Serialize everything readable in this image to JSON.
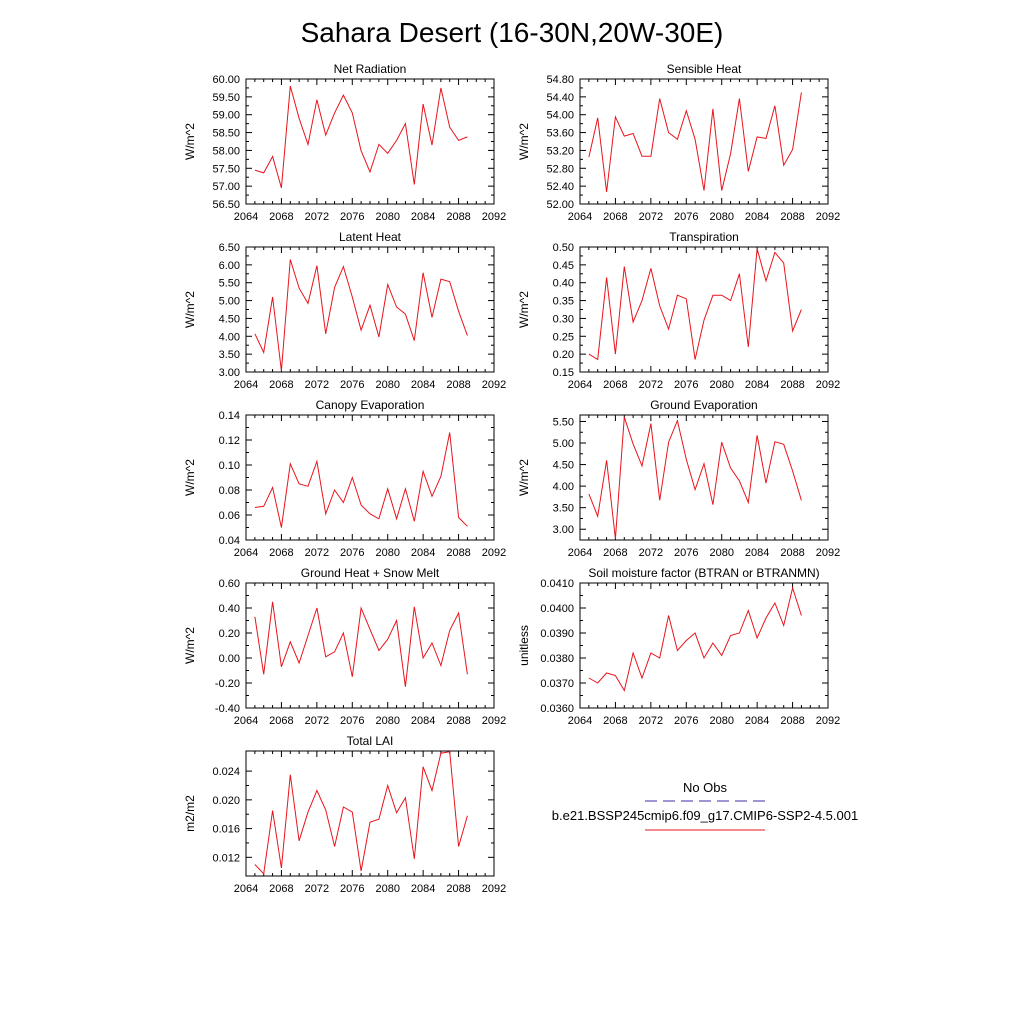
{
  "figure_title": "Sahara Desert (16-30N,20W-30E)",
  "line_color": "#e8141c",
  "obs_color": "#3a2fa0",
  "legend": {
    "obs_label": "No Obs",
    "model_label": "b.e21.BSSP245cmip6.f09_g17.CMIP6-SSP2-4.5.001"
  },
  "chart_data": [
    {
      "type": "line",
      "title": "Net Radiation",
      "ylabel": "W/m^2",
      "xlim": [
        2064,
        2092
      ],
      "ylim": [
        56.5,
        60.0
      ],
      "xticks": [
        "2064",
        "2068",
        "2072",
        "2076",
        "2080",
        "2084",
        "2088",
        "2092"
      ],
      "yticks": [
        "56.50",
        "57.00",
        "57.50",
        "58.00",
        "58.50",
        "59.00",
        "59.50",
        "60.00"
      ],
      "x": [
        2065,
        2066,
        2067,
        2068,
        2069,
        2070,
        2071,
        2072,
        2073,
        2074,
        2075,
        2076,
        2077,
        2078,
        2079,
        2080,
        2081,
        2082,
        2083,
        2084,
        2085,
        2086,
        2087,
        2088,
        2089
      ],
      "values": [
        57.45,
        57.37,
        57.83,
        56.95,
        59.8,
        58.9,
        58.17,
        59.42,
        58.43,
        59.05,
        59.55,
        59.05,
        57.99,
        57.4,
        58.17,
        57.92,
        58.28,
        58.75,
        57.05,
        59.3,
        58.15,
        59.75,
        58.65,
        58.28,
        58.38
      ]
    },
    {
      "type": "line",
      "title": "Sensible Heat",
      "ylabel": "W/m^2",
      "xlim": [
        2064,
        2092
      ],
      "ylim": [
        52.0,
        54.8
      ],
      "xticks": [
        "2064",
        "2068",
        "2072",
        "2076",
        "2080",
        "2084",
        "2088",
        "2092"
      ],
      "yticks": [
        "52.00",
        "52.40",
        "52.80",
        "53.20",
        "53.60",
        "54.00",
        "54.40",
        "54.80"
      ],
      "x": [
        2065,
        2066,
        2067,
        2068,
        2069,
        2070,
        2071,
        2072,
        2073,
        2074,
        2075,
        2076,
        2077,
        2078,
        2079,
        2080,
        2081,
        2082,
        2083,
        2084,
        2085,
        2086,
        2087,
        2088,
        2089
      ],
      "values": [
        53.05,
        53.93,
        52.27,
        53.95,
        53.52,
        53.58,
        53.07,
        53.07,
        54.36,
        53.6,
        53.45,
        54.09,
        53.45,
        52.3,
        54.13,
        52.3,
        53.13,
        54.36,
        52.73,
        53.5,
        53.47,
        54.2,
        52.87,
        53.22,
        54.5
      ]
    },
    {
      "type": "line",
      "title": "Latent Heat",
      "ylabel": "W/m^2",
      "xlim": [
        2064,
        2092
      ],
      "ylim": [
        3.0,
        6.5
      ],
      "xticks": [
        "2064",
        "2068",
        "2072",
        "2076",
        "2080",
        "2084",
        "2088",
        "2092"
      ],
      "yticks": [
        "3.00",
        "3.50",
        "4.00",
        "4.50",
        "5.00",
        "5.50",
        "6.00",
        "6.50"
      ],
      "x": [
        2065,
        2066,
        2067,
        2068,
        2069,
        2070,
        2071,
        2072,
        2073,
        2074,
        2075,
        2076,
        2077,
        2078,
        2079,
        2080,
        2081,
        2082,
        2083,
        2084,
        2085,
        2086,
        2087,
        2088,
        2089
      ],
      "values": [
        4.07,
        3.55,
        5.1,
        3.03,
        6.15,
        5.35,
        4.92,
        5.98,
        4.07,
        5.37,
        5.95,
        5.1,
        4.17,
        4.87,
        3.98,
        5.45,
        4.82,
        4.62,
        3.88,
        5.78,
        4.53,
        5.6,
        5.53,
        4.7,
        4.02
      ]
    },
    {
      "type": "line",
      "title": "Transpiration",
      "ylabel": "W/m^2",
      "xlim": [
        2064,
        2092
      ],
      "ylim": [
        0.15,
        0.5
      ],
      "xticks": [
        "2064",
        "2068",
        "2072",
        "2076",
        "2080",
        "2084",
        "2088",
        "2092"
      ],
      "yticks": [
        "0.15",
        "0.20",
        "0.25",
        "0.30",
        "0.35",
        "0.40",
        "0.45",
        "0.50"
      ],
      "x": [
        2065,
        2066,
        2067,
        2068,
        2069,
        2070,
        2071,
        2072,
        2073,
        2074,
        2075,
        2076,
        2077,
        2078,
        2079,
        2080,
        2081,
        2082,
        2083,
        2084,
        2085,
        2086,
        2087,
        2088,
        2089
      ],
      "values": [
        0.2,
        0.185,
        0.415,
        0.2,
        0.445,
        0.29,
        0.35,
        0.44,
        0.335,
        0.27,
        0.365,
        0.355,
        0.185,
        0.295,
        0.365,
        0.365,
        0.35,
        0.425,
        0.22,
        0.495,
        0.405,
        0.485,
        0.455,
        0.265,
        0.325
      ]
    },
    {
      "type": "line",
      "title": "Canopy Evaporation",
      "ylabel": "W/m^2",
      "xlim": [
        2064,
        2092
      ],
      "ylim": [
        0.04,
        0.14
      ],
      "xticks": [
        "2064",
        "2068",
        "2072",
        "2076",
        "2080",
        "2084",
        "2088",
        "2092"
      ],
      "yticks": [
        "0.04",
        "0.06",
        "0.08",
        "0.10",
        "0.12",
        "0.14"
      ],
      "x": [
        2065,
        2066,
        2067,
        2068,
        2069,
        2070,
        2071,
        2072,
        2073,
        2074,
        2075,
        2076,
        2077,
        2078,
        2079,
        2080,
        2081,
        2082,
        2083,
        2084,
        2085,
        2086,
        2087,
        2088,
        2089
      ],
      "values": [
        0.066,
        0.067,
        0.082,
        0.05,
        0.101,
        0.085,
        0.083,
        0.103,
        0.061,
        0.08,
        0.07,
        0.09,
        0.068,
        0.061,
        0.057,
        0.081,
        0.057,
        0.081,
        0.055,
        0.095,
        0.075,
        0.091,
        0.126,
        0.058,
        0.051
      ]
    },
    {
      "type": "line",
      "title": "Ground Evaporation",
      "ylabel": "W/m^2",
      "xlim": [
        2064,
        2092
      ],
      "ylim": [
        2.75,
        5.65
      ],
      "xticks": [
        "2064",
        "2068",
        "2072",
        "2076",
        "2080",
        "2084",
        "2088",
        "2092"
      ],
      "yticks": [
        "3.00",
        "3.50",
        "4.00",
        "4.50",
        "5.00",
        "5.50"
      ],
      "x": [
        2065,
        2066,
        2067,
        2068,
        2069,
        2070,
        2071,
        2072,
        2073,
        2074,
        2075,
        2076,
        2077,
        2078,
        2079,
        2080,
        2081,
        2082,
        2083,
        2084,
        2085,
        2086,
        2087,
        2088,
        2089
      ],
      "values": [
        3.82,
        3.3,
        4.6,
        2.78,
        5.6,
        4.98,
        4.47,
        5.45,
        3.67,
        5.02,
        5.52,
        4.62,
        3.92,
        4.52,
        3.57,
        5.02,
        4.42,
        4.12,
        3.62,
        5.18,
        4.07,
        5.03,
        4.97,
        4.35,
        3.67
      ]
    },
    {
      "type": "line",
      "title": "Ground Heat + Snow Melt",
      "ylabel": "W/m^2",
      "xlim": [
        2064,
        2092
      ],
      "ylim": [
        -0.4,
        0.6
      ],
      "xticks": [
        "2064",
        "2068",
        "2072",
        "2076",
        "2080",
        "2084",
        "2088",
        "2092"
      ],
      "yticks": [
        "-0.40",
        "-0.20",
        "0.00",
        "0.20",
        "0.40",
        "0.60"
      ],
      "x": [
        2065,
        2066,
        2067,
        2068,
        2069,
        2070,
        2071,
        2072,
        2073,
        2074,
        2075,
        2076,
        2077,
        2078,
        2079,
        2080,
        2081,
        2082,
        2083,
        2084,
        2085,
        2086,
        2087,
        2088,
        2089
      ],
      "values": [
        0.33,
        -0.13,
        0.45,
        -0.07,
        0.13,
        -0.04,
        0.18,
        0.4,
        0.01,
        0.05,
        0.2,
        -0.15,
        0.4,
        0.23,
        0.06,
        0.15,
        0.3,
        -0.23,
        0.41,
        0.0,
        0.12,
        -0.06,
        0.22,
        0.36,
        -0.13
      ]
    },
    {
      "type": "line",
      "title": "Soil moisture factor (BTRAN or BTRANMN)",
      "ylabel": "unitless",
      "xlim": [
        2064,
        2092
      ],
      "ylim": [
        0.036,
        0.041
      ],
      "xticks": [
        "2064",
        "2068",
        "2072",
        "2076",
        "2080",
        "2084",
        "2088",
        "2092"
      ],
      "yticks": [
        "0.0360",
        "0.0370",
        "0.0380",
        "0.0390",
        "0.0400",
        "0.0410"
      ],
      "x": [
        2065,
        2066,
        2067,
        2068,
        2069,
        2070,
        2071,
        2072,
        2073,
        2074,
        2075,
        2076,
        2077,
        2078,
        2079,
        2080,
        2081,
        2082,
        2083,
        2084,
        2085,
        2086,
        2087,
        2088,
        2089
      ],
      "values": [
        0.0372,
        0.037,
        0.0374,
        0.0373,
        0.0367,
        0.0382,
        0.0372,
        0.0382,
        0.038,
        0.0397,
        0.0383,
        0.0387,
        0.039,
        0.038,
        0.0386,
        0.0381,
        0.0389,
        0.039,
        0.0399,
        0.0388,
        0.0396,
        0.0402,
        0.0393,
        0.0408,
        0.0397
      ]
    },
    {
      "type": "line",
      "title": "Total LAI",
      "ylabel": "m2/m2",
      "xlim": [
        2064,
        2092
      ],
      "ylim": [
        0.0094,
        0.0268
      ],
      "xticks": [
        "2064",
        "2068",
        "2072",
        "2076",
        "2080",
        "2084",
        "2088",
        "2092"
      ],
      "yticks": [
        "0.012",
        "0.016",
        "0.020",
        "0.024"
      ],
      "ytick_values": [
        0.012,
        0.016,
        0.02,
        0.024
      ],
      "x": [
        2065,
        2066,
        2067,
        2068,
        2069,
        2070,
        2071,
        2072,
        2073,
        2074,
        2075,
        2076,
        2077,
        2078,
        2079,
        2080,
        2081,
        2082,
        2083,
        2084,
        2085,
        2086,
        2087,
        2088,
        2089
      ],
      "values": [
        0.011,
        0.0097,
        0.0185,
        0.0105,
        0.0235,
        0.0143,
        0.0183,
        0.0213,
        0.0186,
        0.0135,
        0.019,
        0.0183,
        0.0101,
        0.0169,
        0.0173,
        0.022,
        0.0182,
        0.0203,
        0.0118,
        0.0246,
        0.0213,
        0.0265,
        0.0267,
        0.0135,
        0.0178
      ]
    }
  ]
}
